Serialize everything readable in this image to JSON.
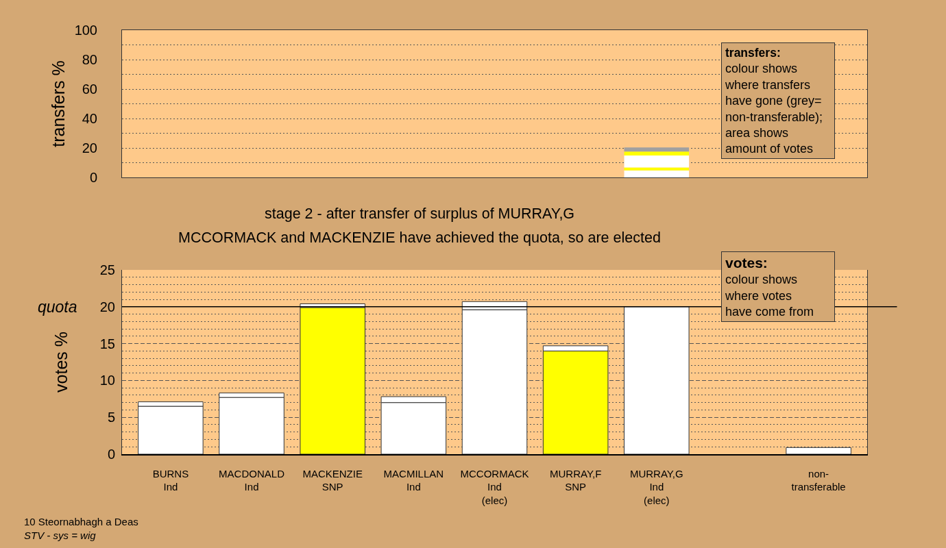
{
  "chart_data": [
    {
      "type": "bar",
      "stacked": true,
      "ylabel": "transfers %",
      "legend_title": "transfers:",
      "annotations": [
        "colour shows\nwhere transfers\nhave gone (grey=\nnon-transferable);\n\narea shows\namount of votes"
      ],
      "categories": [
        null,
        null,
        null,
        null,
        null,
        null,
        null,
        null,
        null
      ],
      "series": [
        {
          "color": "#ffffff",
          "values": [
            null,
            null,
            null,
            null,
            null,
            null,
            4.8,
            null,
            null
          ]
        },
        {
          "color": "#ffff00",
          "values": [
            null,
            null,
            null,
            null,
            null,
            null,
            2.0,
            null,
            null
          ]
        },
        {
          "color": "#ffffff",
          "values": [
            null,
            null,
            null,
            null,
            null,
            null,
            8.1,
            null,
            null
          ]
        },
        {
          "color": "#ffff00",
          "values": [
            null,
            null,
            null,
            null,
            null,
            null,
            2.7,
            null,
            null
          ]
        },
        {
          "color": "#a0a0a0",
          "values": [
            null,
            null,
            null,
            null,
            null,
            null,
            2.8,
            null,
            null
          ]
        }
      ],
      "ylim": [
        0,
        100
      ],
      "yticks": [
        0,
        {
          "value": 10,
          "label": null
        },
        20,
        {
          "value": 30,
          "label": null
        },
        40,
        {
          "value": 50,
          "label": null
        },
        60,
        {
          "value": 70,
          "label": null
        },
        80,
        {
          "value": 90,
          "label": null
        },
        100
      ],
      "grid": "y",
      "tick_labels": "y"
    },
    {
      "type": "bar",
      "stacked": true,
      "title": "stage 2 - after transfer of surplus of MURRAY,G",
      "subtitle": "MCCORMACK and MACKENZIE have achieved the quota, so are elected",
      "ylabel": "votes %",
      "legend_title": "votes:",
      "annotations": [
        "colour shows\nwhere votes\nhave come from",
        "10 Steornabhagh a Deas",
        "STV - sys = wig"
      ],
      "categories": [
        "BURNS\nInd",
        "MACDONALD\nInd",
        "MACKENZIE\nSNP",
        "MACMILLAN\nInd",
        "MCCORMACK\nInd\n(elec)",
        "MURRAY,F\nSNP",
        "MURRAY,G\nInd\n(elec)",
        null,
        "non-\ntransferable"
      ],
      "series": [
        {
          "colors": [
            "#ffffff",
            "#ffffff",
            "#ffff00",
            "#ffffff",
            "#ffffff",
            "#ffff00",
            "#ffffff",
            null,
            null
          ],
          "values": [
            6.5,
            7.7,
            19.9,
            7.0,
            19.6,
            14.0,
            20.0,
            null,
            null
          ]
        },
        {
          "color": "#ffffff",
          "values": [
            0.6,
            0.6,
            0.5,
            0.8,
            1.1,
            0.7,
            null,
            null,
            0.9
          ]
        }
      ],
      "ylim": [
        0,
        25
      ],
      "yticks": [
        0,
        {
          "value": 1,
          "label": null
        },
        {
          "value": 2,
          "label": null
        },
        {
          "value": 3,
          "label": null
        },
        {
          "value": 4,
          "label": null
        },
        5,
        {
          "value": 6,
          "label": null
        },
        {
          "value": 7,
          "label": null
        },
        {
          "value": 8,
          "label": null
        },
        {
          "value": 9,
          "label": null
        },
        10,
        {
          "value": 11,
          "label": null
        },
        {
          "value": 12,
          "label": null
        },
        {
          "value": 13,
          "label": null
        },
        {
          "value": 14,
          "label": null
        },
        15,
        {
          "value": 16,
          "label": null
        },
        {
          "value": 17,
          "label": null
        },
        {
          "value": 18,
          "label": null
        },
        {
          "value": 19,
          "label": null
        },
        20,
        {
          "value": 21,
          "label": null
        },
        {
          "value": 22,
          "label": null
        },
        {
          "value": 23,
          "label": null
        },
        {
          "value": 24,
          "label": null
        },
        25
      ],
      "grid": "y",
      "ref_lines": [
        {
          "axis": "y",
          "value": 20,
          "label": "quota",
          "color": "#000000"
        }
      ]
    }
  ]
}
